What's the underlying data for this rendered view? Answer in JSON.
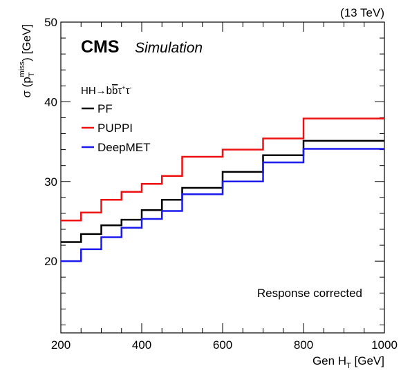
{
  "chart_data": {
    "type": "line",
    "step": true,
    "energy_label": "(13 TeV)",
    "experiment": "CMS",
    "status": "Simulation",
    "process_label": "HH→bb̄τ⁺τ⁻",
    "annotation": "Response corrected",
    "xlabel": "Gen H_T [GeV]",
    "ylabel": "σ (p_T^miss) [GeV]",
    "xlim": [
      200,
      1000
    ],
    "ylim": [
      11,
      50
    ],
    "x_ticks": [
      200,
      400,
      600,
      800,
      1000
    ],
    "y_ticks": [
      20,
      30,
      40,
      50
    ],
    "bin_edges": [
      200,
      250,
      300,
      350,
      400,
      450,
      500,
      600,
      700,
      800,
      1000
    ],
    "series": [
      {
        "name": "PF",
        "color": "#000000",
        "values": [
          22.4,
          23.4,
          24.5,
          25.2,
          26.4,
          27.7,
          29.2,
          31.2,
          33.3,
          35.1
        ]
      },
      {
        "name": "PUPPI",
        "color": "#ee1111",
        "values": [
          25.1,
          26.1,
          27.7,
          28.7,
          29.7,
          30.7,
          33.1,
          34.0,
          35.4,
          37.9
        ]
      },
      {
        "name": "DeepMET",
        "color": "#1a1aee",
        "values": [
          20.0,
          21.5,
          23.0,
          24.2,
          25.3,
          26.3,
          28.4,
          30.0,
          32.4,
          34.1
        ]
      }
    ]
  }
}
